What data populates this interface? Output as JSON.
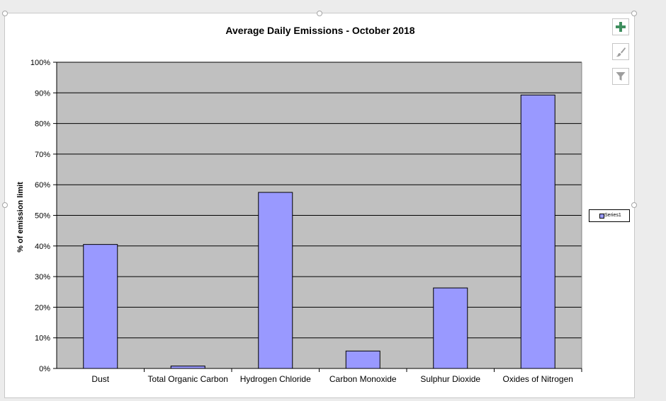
{
  "colors": {
    "bar_fill": "#9999ff",
    "plot_background": "#c0c0c0",
    "gridline": "#000000",
    "add_icon": "#3f8f5f",
    "tool_icon": "#9e9e9e"
  },
  "toolbar": {
    "add_elements_icon": "plus-icon",
    "styles_icon": "brush-icon",
    "filters_icon": "funnel-icon"
  },
  "chart_data": {
    "type": "bar",
    "title": "Average Daily Emissions - October 2018",
    "xlabel": "",
    "ylabel": "% of emission limit",
    "categories": [
      "Dust",
      "Total Organic Carbon",
      "Hydrogen Chloride",
      "Carbon Monoxide",
      "Sulphur Dioxide",
      "Oxides of Nitrogen"
    ],
    "series": [
      {
        "name": "Series1",
        "values": [
          40.5,
          0.8,
          57.5,
          5.7,
          26.3,
          89.3
        ]
      }
    ],
    "ylim": [
      0,
      100
    ],
    "yticks": [
      "0%",
      "10%",
      "20%",
      "30%",
      "40%",
      "50%",
      "60%",
      "70%",
      "80%",
      "90%",
      "100%"
    ],
    "grid": true,
    "legend_position": "right"
  }
}
